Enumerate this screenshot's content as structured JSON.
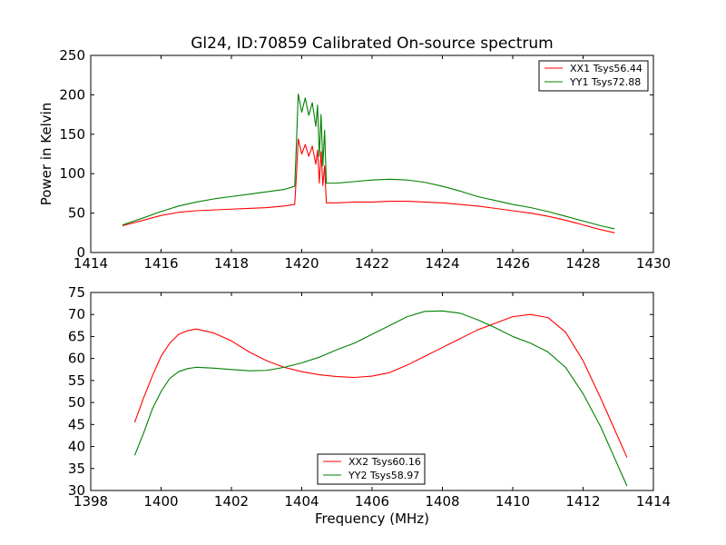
{
  "title": "Gl24, ID:70859 Calibrated On-source spectrum",
  "colors": {
    "red": "#ff0000",
    "green": "#008000"
  },
  "chart_data": [
    {
      "type": "line",
      "ylabel": "Power in Kelvin",
      "xlabel": "",
      "xlim": [
        1414,
        1430
      ],
      "ylim": [
        0,
        250
      ],
      "xticks": [
        1414,
        1416,
        1418,
        1420,
        1422,
        1424,
        1426,
        1428,
        1430
      ],
      "yticks": [
        0,
        50,
        100,
        150,
        200,
        250
      ],
      "legend_position": "top-right",
      "series": [
        {
          "name": "XX1 Tsys56.44",
          "color": "#ff0000",
          "x": [
            1414.9,
            1415.5,
            1416.0,
            1416.5,
            1417.0,
            1417.5,
            1418.0,
            1418.5,
            1419.0,
            1419.5,
            1419.8,
            1419.85,
            1419.9,
            1420.0,
            1420.1,
            1420.2,
            1420.3,
            1420.4,
            1420.45,
            1420.5,
            1420.55,
            1420.6,
            1420.65,
            1420.7,
            1420.8,
            1421.0,
            1421.5,
            1422.0,
            1422.5,
            1423.0,
            1423.5,
            1424.0,
            1424.5,
            1425.0,
            1425.5,
            1426.0,
            1426.5,
            1427.0,
            1427.5,
            1428.0,
            1428.5,
            1428.9
          ],
          "y": [
            34,
            41,
            47,
            51,
            53,
            54,
            55,
            56,
            57,
            59,
            61,
            100,
            144,
            125,
            137,
            122,
            135,
            112,
            130,
            88,
            128,
            85,
            110,
            63,
            63,
            63,
            64,
            64,
            65,
            65,
            64,
            63,
            61,
            59,
            56,
            53,
            50,
            46,
            41,
            35,
            29,
            25
          ]
        },
        {
          "name": "YY1 Tsys72.88",
          "color": "#008000",
          "x": [
            1414.9,
            1415.5,
            1416.0,
            1416.5,
            1417.0,
            1417.5,
            1418.0,
            1418.5,
            1419.0,
            1419.5,
            1419.8,
            1419.85,
            1419.9,
            1420.0,
            1420.1,
            1420.2,
            1420.3,
            1420.4,
            1420.45,
            1420.5,
            1420.55,
            1420.6,
            1420.65,
            1420.7,
            1420.8,
            1421.0,
            1421.5,
            1422.0,
            1422.5,
            1423.0,
            1423.5,
            1424.0,
            1424.5,
            1425.0,
            1425.5,
            1426.0,
            1426.5,
            1427.0,
            1427.5,
            1428.0,
            1428.5,
            1428.9
          ],
          "y": [
            35,
            44,
            52,
            59,
            64,
            68,
            71,
            74,
            77,
            80,
            84,
            140,
            201,
            178,
            196,
            174,
            190,
            160,
            187,
            122,
            175,
            110,
            155,
            88,
            88,
            88,
            90,
            92,
            93,
            92,
            89,
            84,
            78,
            71,
            66,
            61,
            57,
            52,
            46,
            40,
            34,
            30
          ]
        }
      ]
    },
    {
      "type": "line",
      "xlabel": "Frequency (MHz)",
      "ylabel": "",
      "xlim": [
        1398,
        1414
      ],
      "ylim": [
        30,
        75
      ],
      "xticks": [
        1398,
        1400,
        1402,
        1404,
        1406,
        1408,
        1410,
        1412,
        1414
      ],
      "yticks": [
        30,
        35,
        40,
        45,
        50,
        55,
        60,
        65,
        70,
        75
      ],
      "legend_position": "bottom-center",
      "series": [
        {
          "name": "XX2 Tsys60.16",
          "color": "#ff0000",
          "x": [
            1399.25,
            1399.5,
            1399.75,
            1400.0,
            1400.25,
            1400.5,
            1400.75,
            1401.0,
            1401.5,
            1402.0,
            1402.5,
            1403.0,
            1403.5,
            1404.0,
            1404.5,
            1405.0,
            1405.5,
            1406.0,
            1406.5,
            1407.0,
            1407.5,
            1408.0,
            1408.5,
            1409.0,
            1409.5,
            1410.0,
            1410.5,
            1411.0,
            1411.5,
            1412.0,
            1412.5,
            1413.0,
            1413.25
          ],
          "y": [
            45.5,
            51,
            56,
            60.5,
            63.5,
            65.5,
            66.3,
            66.7,
            65.8,
            64,
            61.5,
            59.5,
            58,
            57,
            56.3,
            55.9,
            55.7,
            56,
            56.8,
            58.5,
            60.5,
            62.5,
            64.5,
            66.5,
            68,
            69.5,
            70,
            69.3,
            66,
            59.5,
            51,
            42,
            37.5
          ]
        },
        {
          "name": "YY2 Tsys58.97",
          "color": "#008000",
          "x": [
            1399.25,
            1399.5,
            1399.75,
            1400.0,
            1400.25,
            1400.5,
            1400.75,
            1401.0,
            1401.5,
            1402.0,
            1402.5,
            1403.0,
            1403.5,
            1404.0,
            1404.5,
            1405.0,
            1405.5,
            1406.0,
            1406.5,
            1407.0,
            1407.5,
            1408.0,
            1408.5,
            1409.0,
            1409.5,
            1410.0,
            1410.5,
            1411.0,
            1411.5,
            1412.0,
            1412.5,
            1413.0,
            1413.25
          ],
          "y": [
            38,
            43,
            48.5,
            52.5,
            55.5,
            57,
            57.7,
            58,
            57.8,
            57.5,
            57.2,
            57.3,
            58,
            59,
            60.3,
            62,
            63.5,
            65.5,
            67.5,
            69.5,
            70.7,
            70.8,
            70.3,
            68.8,
            67,
            65,
            63.5,
            61.5,
            58,
            52,
            44.5,
            35.5,
            31
          ]
        }
      ]
    }
  ]
}
